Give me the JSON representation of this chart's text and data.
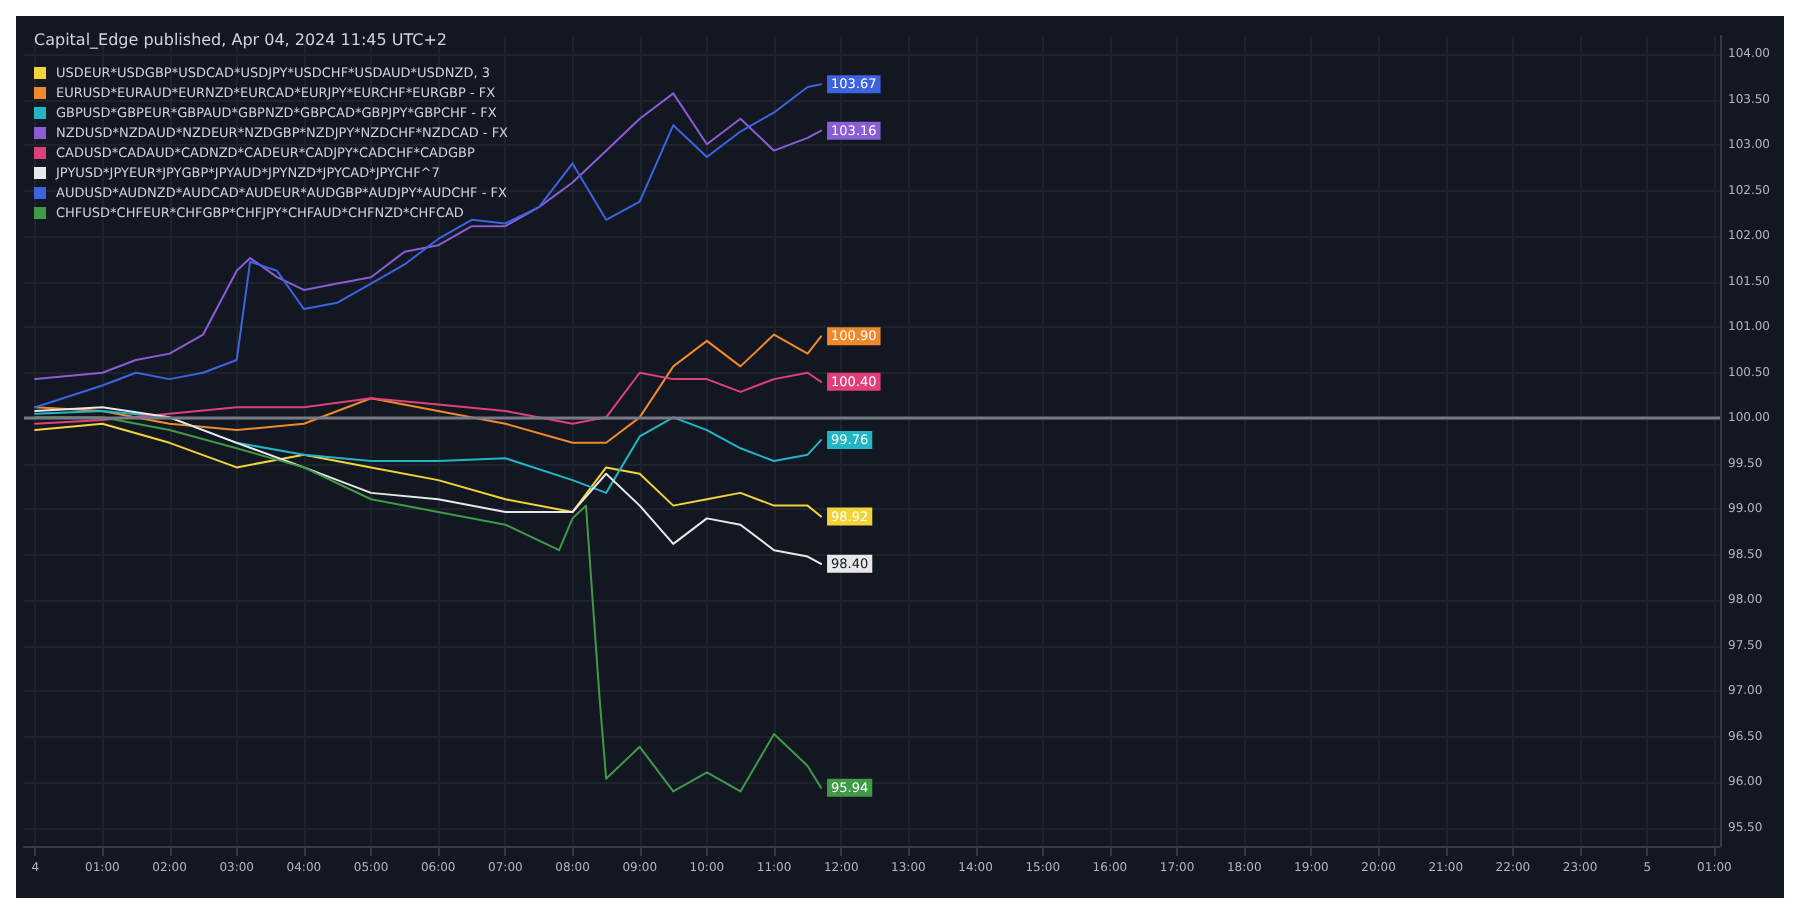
{
  "chart_data": {
    "type": "line",
    "title": "Capital_Edge published, Apr 04, 2024 11:45 UTC+2",
    "x": [
      "2024-04-04T00:00",
      "2024-04-04T01:00",
      "2024-04-04T02:00",
      "2024-04-04T03:00",
      "2024-04-04T04:00",
      "2024-04-04T05:00",
      "2024-04-04T06:00",
      "2024-04-04T07:00",
      "2024-04-04T08:00",
      "2024-04-04T08:30",
      "2024-04-04T09:00",
      "2024-04-04T09:30",
      "2024-04-04T10:00",
      "2024-04-04T10:30",
      "2024-04-04T11:00",
      "2024-04-04T11:30",
      "2024-04-04T11:42"
    ],
    "series": [
      {
        "name": "USDEUR*USDGBP*USDCAD*USDJPY*USDCHF*USDAUD*USDNZD, 3",
        "color": "#f2d338",
        "values": [
          99.87,
          99.94,
          99.73,
          99.46,
          99.6,
          99.46,
          99.32,
          99.11,
          98.97,
          99.46,
          99.39,
          99.04,
          99.11,
          99.18,
          99.04,
          99.04,
          98.92
        ],
        "value_labels": [
          null,
          null,
          null,
          null,
          null,
          null,
          null,
          null,
          null,
          null,
          null,
          null,
          null,
          null,
          null,
          null,
          "98.92"
        ]
      },
      {
        "name": "EURUSD*EURAUD*EURNZD*EURCAD*EURJPY*EURCHF*EURGBP - FX",
        "color": "#f0892b",
        "values": [
          100.12,
          100.08,
          99.94,
          99.87,
          99.94,
          100.22,
          100.08,
          99.94,
          99.73,
          99.73,
          100.01,
          100.57,
          100.85,
          100.57,
          100.92,
          100.71,
          100.9
        ],
        "value_labels": [
          null,
          null,
          null,
          null,
          null,
          null,
          null,
          null,
          null,
          null,
          null,
          null,
          null,
          null,
          null,
          null,
          "100.90"
        ]
      },
      {
        "name": "GBPUSD*GBPEUR*GBPAUD*GBPNZD*GBPCAD*GBPJPY*GBPCHF - FX",
        "color": "#22b5c6",
        "values": [
          100.05,
          100.08,
          100.01,
          99.73,
          99.6,
          99.53,
          99.53,
          99.56,
          99.32,
          99.18,
          99.8,
          100.01,
          99.87,
          99.67,
          99.53,
          99.6,
          99.76
        ],
        "value_labels": [
          null,
          null,
          null,
          null,
          null,
          null,
          null,
          null,
          null,
          null,
          null,
          null,
          null,
          null,
          null,
          null,
          "99.76"
        ]
      },
      {
        "name": "NZDUSD*NZDAUD*NZDEUR*NZDGBP*NZDJPY*NZDCHF*NZDCAD - FX",
        "color": "#8a5cd6",
        "x": [
          "2024-04-04T00:00",
          "2024-04-04T01:00",
          "2024-04-04T01:30",
          "2024-04-04T02:00",
          "2024-04-04T02:30",
          "2024-04-04T03:00",
          "2024-04-04T03:12",
          "2024-04-04T03:36",
          "2024-04-04T04:00",
          "2024-04-04T04:30",
          "2024-04-04T05:00",
          "2024-04-04T05:30",
          "2024-04-04T06:00",
          "2024-04-04T06:30",
          "2024-04-04T07:00",
          "2024-04-04T07:30",
          "2024-04-04T08:00",
          "2024-04-04T08:30",
          "2024-04-04T09:00",
          "2024-04-04T09:30",
          "2024-04-04T10:00",
          "2024-04-04T10:30",
          "2024-04-04T11:00",
          "2024-04-04T11:30",
          "2024-04-04T11:42"
        ],
        "values": [
          100.43,
          100.5,
          100.64,
          100.71,
          100.92,
          101.62,
          101.76,
          101.55,
          101.41,
          101.48,
          101.55,
          101.83,
          101.9,
          102.11,
          102.11,
          102.32,
          102.59,
          102.94,
          103.29,
          103.57,
          103.01,
          103.29,
          102.94,
          103.08,
          103.16
        ],
        "value_labels": [
          null,
          null,
          null,
          null,
          null,
          null,
          null,
          null,
          null,
          null,
          null,
          null,
          null,
          null,
          null,
          null,
          null,
          null,
          null,
          null,
          null,
          null,
          null,
          null,
          "103.16"
        ]
      },
      {
        "name": "CADUSD*CADAUD*CADNZD*CADEUR*CADJPY*CADCHF*CADGBP",
        "color": "#e0407a",
        "values": [
          99.94,
          99.98,
          100.05,
          100.12,
          100.12,
          100.22,
          100.15,
          100.08,
          99.94,
          100.01,
          100.5,
          100.43,
          100.43,
          100.29,
          100.43,
          100.5,
          100.4
        ],
        "value_labels": [
          null,
          null,
          null,
          null,
          null,
          null,
          null,
          null,
          null,
          null,
          null,
          null,
          null,
          null,
          null,
          null,
          "100.40"
        ]
      },
      {
        "name": "JPYUSD*JPYEUR*JPYGBP*JPYAUD*JPYNZD*JPYCAD*JPYCHF^7",
        "color": "#e8e8e8",
        "values": [
          100.08,
          100.12,
          100.01,
          99.73,
          99.46,
          99.18,
          99.11,
          98.97,
          98.97,
          99.39,
          99.04,
          98.62,
          98.9,
          98.83,
          98.55,
          98.48,
          98.4
        ],
        "value_labels": [
          null,
          null,
          null,
          null,
          null,
          null,
          null,
          null,
          null,
          null,
          null,
          null,
          null,
          null,
          null,
          null,
          "98.40"
        ]
      },
      {
        "name": "AUDUSD*AUDNZD*AUDCAD*AUDEUR*AUDGBP*AUDJPY*AUDCHF - FX",
        "color": "#3d63e0",
        "x": [
          "2024-04-04T00:00",
          "2024-04-04T01:00",
          "2024-04-04T01:30",
          "2024-04-04T02:00",
          "2024-04-04T02:30",
          "2024-04-04T03:00",
          "2024-04-04T03:12",
          "2024-04-04T03:36",
          "2024-04-04T04:00",
          "2024-04-04T04:30",
          "2024-04-04T05:00",
          "2024-04-04T05:30",
          "2024-04-04T06:00",
          "2024-04-04T06:30",
          "2024-04-04T07:00",
          "2024-04-04T07:30",
          "2024-04-04T08:00",
          "2024-04-04T08:30",
          "2024-04-04T09:00",
          "2024-04-04T09:30",
          "2024-04-04T10:00",
          "2024-04-04T10:30",
          "2024-04-04T11:00",
          "2024-04-04T11:30",
          "2024-04-04T11:42"
        ],
        "values": [
          100.12,
          100.36,
          100.5,
          100.43,
          100.5,
          100.64,
          101.72,
          101.62,
          101.2,
          101.27,
          101.48,
          101.69,
          101.97,
          102.18,
          102.14,
          102.32,
          102.8,
          102.18,
          102.38,
          103.22,
          102.87,
          103.15,
          103.36,
          103.64,
          103.67
        ],
        "value_labels": [
          null,
          null,
          null,
          null,
          null,
          null,
          null,
          null,
          null,
          null,
          null,
          null,
          null,
          null,
          null,
          null,
          null,
          null,
          null,
          null,
          null,
          null,
          null,
          null,
          "103.67"
        ]
      },
      {
        "name": "CHFUSD*CHFEUR*CHFGBP*CHFJPY*CHFAUD*CHFNZD*CHFCAD",
        "color": "#3f9a47",
        "x": [
          "2024-04-04T00:00",
          "2024-04-04T01:00",
          "2024-04-04T02:00",
          "2024-04-04T03:00",
          "2024-04-04T04:00",
          "2024-04-04T05:00",
          "2024-04-04T06:00",
          "2024-04-04T07:00",
          "2024-04-04T07:48",
          "2024-04-04T08:00",
          "2024-04-04T08:12",
          "2024-04-04T08:24",
          "2024-04-04T08:30",
          "2024-04-04T09:00",
          "2024-04-04T09:30",
          "2024-04-04T10:00",
          "2024-04-04T10:30",
          "2024-04-04T11:00",
          "2024-04-04T11:30",
          "2024-04-04T11:42"
        ],
        "values": [
          100.01,
          100.01,
          99.87,
          99.67,
          99.46,
          99.11,
          98.97,
          98.83,
          98.55,
          98.9,
          99.04,
          96.95,
          96.04,
          96.39,
          95.9,
          96.11,
          95.9,
          96.53,
          96.18,
          95.94
        ],
        "value_labels": [
          null,
          null,
          null,
          null,
          null,
          null,
          null,
          null,
          null,
          null,
          null,
          null,
          null,
          null,
          null,
          null,
          null,
          null,
          null,
          "95.94"
        ]
      }
    ],
    "xlim": [
      "2024-04-03T23:50",
      "2024-04-05T01:05"
    ],
    "xticks": [
      {
        "value": "2024-04-04T00:00",
        "label": "4"
      },
      {
        "value": "2024-04-04T01:00",
        "label": "01:00"
      },
      {
        "value": "2024-04-04T02:00",
        "label": "02:00"
      },
      {
        "value": "2024-04-04T03:00",
        "label": "03:00"
      },
      {
        "value": "2024-04-04T04:00",
        "label": "04:00"
      },
      {
        "value": "2024-04-04T05:00",
        "label": "05:00"
      },
      {
        "value": "2024-04-04T06:00",
        "label": "06:00"
      },
      {
        "value": "2024-04-04T07:00",
        "label": "07:00"
      },
      {
        "value": "2024-04-04T08:00",
        "label": "08:00"
      },
      {
        "value": "2024-04-04T09:00",
        "label": "09:00"
      },
      {
        "value": "2024-04-04T10:00",
        "label": "10:00"
      },
      {
        "value": "2024-04-04T11:00",
        "label": "11:00"
      },
      {
        "value": "2024-04-04T12:00",
        "label": "12:00"
      },
      {
        "value": "2024-04-04T13:00",
        "label": "13:00"
      },
      {
        "value": "2024-04-04T14:00",
        "label": "14:00"
      },
      {
        "value": "2024-04-04T15:00",
        "label": "15:00"
      },
      {
        "value": "2024-04-04T16:00",
        "label": "16:00"
      },
      {
        "value": "2024-04-04T17:00",
        "label": "17:00"
      },
      {
        "value": "2024-04-04T18:00",
        "label": "18:00"
      },
      {
        "value": "2024-04-04T19:00",
        "label": "19:00"
      },
      {
        "value": "2024-04-04T20:00",
        "label": "20:00"
      },
      {
        "value": "2024-04-04T21:00",
        "label": "21:00"
      },
      {
        "value": "2024-04-04T22:00",
        "label": "22:00"
      },
      {
        "value": "2024-04-04T23:00",
        "label": "23:00"
      },
      {
        "value": "2024-04-05T00:00",
        "label": "5"
      },
      {
        "value": "2024-04-05T01:00",
        "label": "01:00"
      }
    ],
    "ylim": [
      95.3,
      104.2
    ],
    "yticks": [
      {
        "value": 95.5,
        "label": "95.50"
      },
      {
        "value": 96,
        "label": "96.00"
      },
      {
        "value": 96.5,
        "label": "96.50"
      },
      {
        "value": 97,
        "label": "97.00"
      },
      {
        "value": 97.5,
        "label": "97.50"
      },
      {
        "value": 98,
        "label": "98.00"
      },
      {
        "value": 98.5,
        "label": "98.50"
      },
      {
        "value": 99,
        "label": "99.00"
      },
      {
        "value": 99.5,
        "label": "99.50"
      },
      {
        "value": 100,
        "label": "100.00"
      },
      {
        "value": 100.5,
        "label": "100.50"
      },
      {
        "value": 101,
        "label": "101.00"
      },
      {
        "value": 101.5,
        "label": "101.50"
      },
      {
        "value": 102,
        "label": "102.00"
      },
      {
        "value": 102.5,
        "label": "102.50"
      },
      {
        "value": 103,
        "label": "103.00"
      },
      {
        "value": 103.5,
        "label": "103.50"
      },
      {
        "value": 104,
        "label": "104.00"
      }
    ],
    "ref_lines": [
      {
        "axis": "y",
        "value": 100,
        "color": "#787b86"
      }
    ],
    "grid": true,
    "legend": "top left",
    "marker": "none",
    "line_style": "solid"
  }
}
